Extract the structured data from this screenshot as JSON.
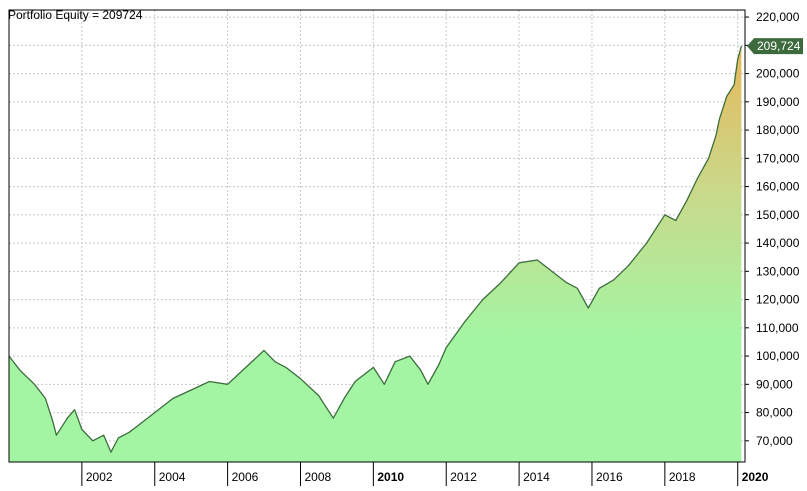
{
  "chart_data": {
    "type": "area",
    "title": "Portfolio Equity = 209724",
    "xlabel": "",
    "ylabel": "",
    "x_range": [
      2000.0,
      2020.2
    ],
    "ylim": [
      62500,
      222500
    ],
    "grid": true,
    "y_ticks": [
      70000,
      80000,
      90000,
      100000,
      110000,
      120000,
      130000,
      140000,
      150000,
      160000,
      170000,
      180000,
      190000,
      200000,
      210000,
      220000
    ],
    "y_tick_labels": [
      "70,000",
      "80,000",
      "90,000",
      "100,000",
      "110,000",
      "120,000",
      "130,000",
      "140,000",
      "150,000",
      "160,000",
      "170,000",
      "180,000",
      "190,000",
      "200,000",
      "210,000",
      "220,000"
    ],
    "x_ticks": [
      {
        "year": 2002,
        "label": "2002",
        "bold": false
      },
      {
        "year": 2004,
        "label": "2004",
        "bold": false
      },
      {
        "year": 2006,
        "label": "2006",
        "bold": false
      },
      {
        "year": 2008,
        "label": "2008",
        "bold": false
      },
      {
        "year": 2010,
        "label": "2010",
        "bold": true
      },
      {
        "year": 2012,
        "label": "2012",
        "bold": false
      },
      {
        "year": 2014,
        "label": "2014",
        "bold": false
      },
      {
        "year": 2016,
        "label": "2016",
        "bold": false
      },
      {
        "year": 2018,
        "label": "2018",
        "bold": false
      },
      {
        "year": 2020,
        "label": "2020",
        "bold": true
      }
    ],
    "series": [
      {
        "x": [
          2000.0,
          2000.3,
          2000.7,
          2001.0,
          2001.2,
          2001.3,
          2001.6,
          2001.8,
          2002.0,
          2002.3,
          2002.6,
          2002.8,
          2003.0,
          2003.3,
          2003.6,
          2004.0,
          2004.5,
          2005.0,
          2005.5,
          2006.0,
          2006.5,
          2007.0,
          2007.3,
          2007.6,
          2008.0,
          2008.5,
          2008.9,
          2009.2,
          2009.5,
          2009.8,
          2010.0,
          2010.3,
          2010.6,
          2011.0,
          2011.3,
          2011.5,
          2011.8,
          2012.0,
          2012.5,
          2013.0,
          2013.5,
          2014.0,
          2014.5,
          2015.0,
          2015.3,
          2015.6,
          2015.9,
          2016.2,
          2016.6,
          2017.0,
          2017.5,
          2018.0,
          2018.3,
          2018.6,
          2018.9,
          2019.2,
          2019.4,
          2019.5,
          2019.7,
          2019.9,
          2020.0,
          2020.1
        ],
        "values": [
          100000,
          95000,
          90000,
          85000,
          77000,
          72000,
          78000,
          81000,
          74000,
          70000,
          72000,
          66000,
          71000,
          73000,
          76000,
          80000,
          85000,
          88000,
          91000,
          90000,
          96000,
          102000,
          98000,
          96000,
          92000,
          86000,
          78000,
          85000,
          91000,
          94000,
          96000,
          90000,
          98000,
          100000,
          95000,
          90000,
          97000,
          103000,
          112000,
          120000,
          126000,
          133000,
          134000,
          129000,
          126000,
          124000,
          117000,
          124000,
          127000,
          132000,
          140000,
          150000,
          148000,
          155000,
          163000,
          170000,
          178000,
          184000,
          192000,
          196000,
          205000,
          209724
        ]
      }
    ],
    "last_value_label": "209,724",
    "colors": {
      "line": "#3d6e3d",
      "area_bottom": "#a3f5a3",
      "area_top": "#e6b85c",
      "grid": "#c8c8c8",
      "badge": "#3e6b3e"
    }
  }
}
